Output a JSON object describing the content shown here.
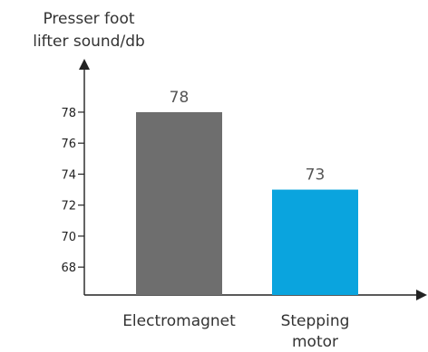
{
  "chart_data": {
    "type": "bar",
    "title": "",
    "xlabel": "",
    "ylabel": [
      "Presser foot",
      "lifter sound/db"
    ],
    "categories": [
      [
        "Electromagnet"
      ],
      [
        "Stepping",
        "motor"
      ]
    ],
    "values": [
      78,
      73
    ],
    "data_labels": [
      "78",
      "73"
    ],
    "bar_colors": [
      "#6e6e6e",
      "#0aa4de"
    ],
    "yticks": [
      68,
      70,
      72,
      74,
      76,
      78
    ],
    "ylim": [
      66.2,
      80.8
    ],
    "grid": false,
    "legend": "none"
  }
}
